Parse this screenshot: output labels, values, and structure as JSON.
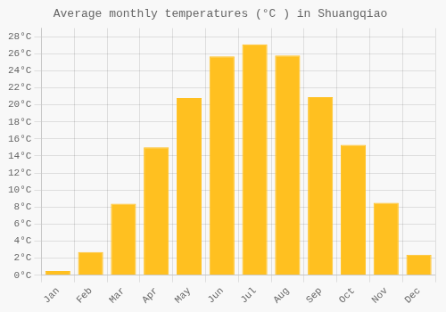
{
  "chart_data": {
    "type": "bar",
    "title": "Average monthly temperatures (°C ) in Shuangqiao",
    "categories": [
      "Jan",
      "Feb",
      "Mar",
      "Apr",
      "May",
      "Jun",
      "Jul",
      "Aug",
      "Sep",
      "Oct",
      "Nov",
      "Dec"
    ],
    "values": [
      0.5,
      2.7,
      8.4,
      15.0,
      20.8,
      25.7,
      27.1,
      25.8,
      20.9,
      15.3,
      8.5,
      2.4
    ],
    "color": "#FFC020",
    "ylim": [
      0,
      29
    ],
    "yticks": [
      {
        "value": 0,
        "label": "0°C"
      },
      {
        "value": 2,
        "label": "2°C"
      },
      {
        "value": 4,
        "label": "4°C"
      },
      {
        "value": 6,
        "label": "6°C"
      },
      {
        "value": 8,
        "label": "8°C"
      },
      {
        "value": 10,
        "label": "10°C"
      },
      {
        "value": 12,
        "label": "12°C"
      },
      {
        "value": 14,
        "label": "14°C"
      },
      {
        "value": 16,
        "label": "16°C"
      },
      {
        "value": 18,
        "label": "18°C"
      },
      {
        "value": 20,
        "label": "20°C"
      },
      {
        "value": 22,
        "label": "22°C"
      },
      {
        "value": 24,
        "label": "24°C"
      },
      {
        "value": 26,
        "label": "26°C"
      },
      {
        "value": 28,
        "label": "28°C"
      }
    ],
    "grid": true
  }
}
